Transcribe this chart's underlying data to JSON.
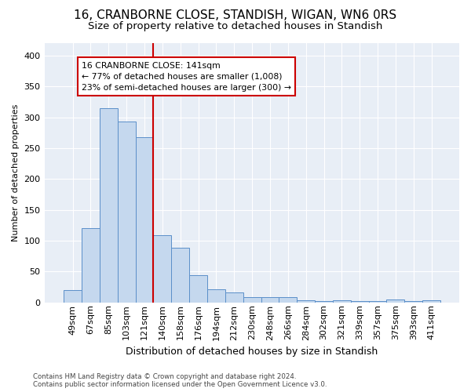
{
  "title": "16, CRANBORNE CLOSE, STANDISH, WIGAN, WN6 0RS",
  "subtitle": "Size of property relative to detached houses in Standish",
  "xlabel": "Distribution of detached houses by size in Standish",
  "ylabel": "Number of detached properties",
  "categories": [
    "49sqm",
    "67sqm",
    "85sqm",
    "103sqm",
    "121sqm",
    "140sqm",
    "158sqm",
    "176sqm",
    "194sqm",
    "212sqm",
    "230sqm",
    "248sqm",
    "266sqm",
    "284sqm",
    "302sqm",
    "321sqm",
    "339sqm",
    "357sqm",
    "375sqm",
    "393sqm",
    "411sqm"
  ],
  "values": [
    20,
    120,
    315,
    293,
    267,
    109,
    88,
    44,
    21,
    16,
    9,
    9,
    8,
    4,
    2,
    4,
    2,
    2,
    5,
    2,
    3
  ],
  "bar_color": "#c5d8ee",
  "bar_edge_color": "#5b8fc9",
  "vline_color": "#cc0000",
  "vline_position": 5,
  "annotation_line1": "16 CRANBORNE CLOSE: 141sqm",
  "annotation_line2": "← 77% of detached houses are smaller (1,008)",
  "annotation_line3": "23% of semi-detached houses are larger (300) →",
  "annotation_box_color": "#cc0000",
  "footer": "Contains HM Land Registry data © Crown copyright and database right 2024.\nContains public sector information licensed under the Open Government Licence v3.0.",
  "ylim": [
    0,
    420
  ],
  "yticks": [
    0,
    50,
    100,
    150,
    200,
    250,
    300,
    350,
    400
  ],
  "fig_background": "#ffffff",
  "plot_background": "#e8eef6",
  "grid_color": "#ffffff",
  "title_fontsize": 11,
  "subtitle_fontsize": 9.5,
  "tick_fontsize": 8,
  "ylabel_fontsize": 8,
  "xlabel_fontsize": 9
}
